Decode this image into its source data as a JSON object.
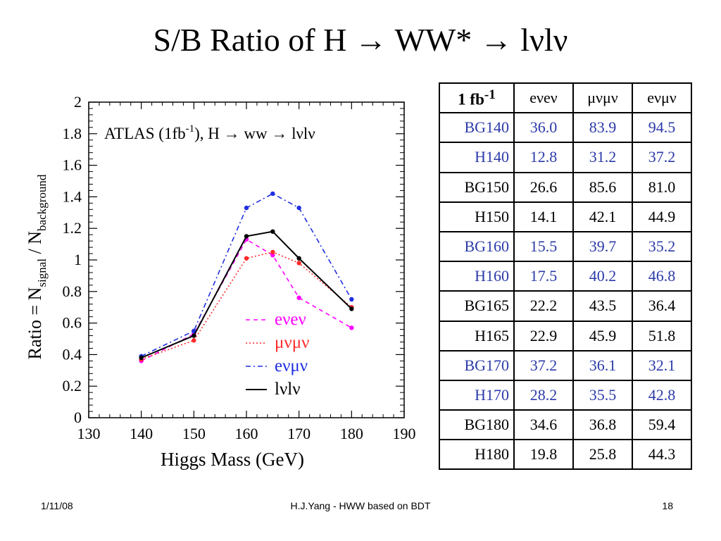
{
  "slide": {
    "title": "S/B Ratio of H → WW* → lνlν"
  },
  "footer": {
    "date": "1/11/08",
    "center": "H.J.Yang - HWW based on BDT",
    "page": "18"
  },
  "table": {
    "corner_text": "1 fb",
    "corner_sup": "-1",
    "headers": [
      "eνeν",
      "μνμν",
      "eνμν"
    ],
    "rows": [
      {
        "label": "BG140",
        "values": [
          "36.0",
          "83.9",
          "94.5"
        ],
        "blue": true
      },
      {
        "label": "H140",
        "values": [
          "12.8",
          "31.2",
          "37.2"
        ],
        "blue": true
      },
      {
        "label": "BG150",
        "values": [
          "26.6",
          "85.6",
          "81.0"
        ],
        "blue": false
      },
      {
        "label": "H150",
        "values": [
          "14.1",
          "42.1",
          "44.9"
        ],
        "blue": false
      },
      {
        "label": "BG160",
        "values": [
          "15.5",
          "39.7",
          "35.2"
        ],
        "blue": true
      },
      {
        "label": "H160",
        "values": [
          "17.5",
          "40.2",
          "46.8"
        ],
        "blue": true
      },
      {
        "label": "BG165",
        "values": [
          "22.2",
          "43.5",
          "36.4"
        ],
        "blue": false
      },
      {
        "label": "H165",
        "values": [
          "22.9",
          "45.9",
          "51.8"
        ],
        "blue": false
      },
      {
        "label": "BG170",
        "values": [
          "37.2",
          "36.1",
          "32.1"
        ],
        "blue": true
      },
      {
        "label": "H170",
        "values": [
          "28.2",
          "35.5",
          "42.8"
        ],
        "blue": true
      },
      {
        "label": "BG180",
        "values": [
          "34.6",
          "36.8",
          "59.4"
        ],
        "blue": false
      },
      {
        "label": "H180",
        "values": [
          "19.8",
          "25.8",
          "44.3"
        ],
        "blue": false
      }
    ]
  },
  "chart_data": {
    "type": "line",
    "title": "ATLAS (1fb-1), H → ww → lνlν",
    "title_parts": {
      "prefix": "ATLAS (1fb",
      "sup": "-1",
      "suffix": "), H → ww → lνlν"
    },
    "xlabel": "Higgs Mass (GeV)",
    "ylabel_parts": {
      "a": "Ratio = N",
      "sub1": "signal",
      "b": " / N",
      "sub2": "background"
    },
    "xlim": [
      130,
      190
    ],
    "ylim": [
      0,
      2
    ],
    "x_ticks": [
      "130",
      "140",
      "150",
      "160",
      "170",
      "180",
      "190"
    ],
    "y_ticks": [
      "0",
      "0.2",
      "0.4",
      "0.6",
      "0.8",
      "1",
      "1.2",
      "1.4",
      "1.6",
      "1.8",
      "2"
    ],
    "grid": false,
    "legend_position": "bottom-right",
    "series": [
      {
        "name": "eνeν",
        "color": "#ff00ff",
        "dash": "dash",
        "points": [
          [
            140,
            0.36
          ],
          [
            150,
            0.53
          ],
          [
            160,
            1.13
          ],
          [
            165,
            1.03
          ],
          [
            170,
            0.76
          ],
          [
            180,
            0.57
          ]
        ]
      },
      {
        "name": "μνμν",
        "color": "#ff2a2a",
        "dash": "dot",
        "points": [
          [
            140,
            0.37
          ],
          [
            150,
            0.49
          ],
          [
            160,
            1.01
          ],
          [
            165,
            1.05
          ],
          [
            170,
            0.98
          ],
          [
            180,
            0.7
          ]
        ]
      },
      {
        "name": "eνμν",
        "color": "#1f2ee0",
        "dash": "dashdot",
        "points": [
          [
            140,
            0.39
          ],
          [
            150,
            0.55
          ],
          [
            160,
            1.33
          ],
          [
            165,
            1.42
          ],
          [
            170,
            1.33
          ],
          [
            180,
            0.75
          ]
        ]
      },
      {
        "name": "lνlν",
        "color": "#000000",
        "dash": "solid",
        "points": [
          [
            140,
            0.38
          ],
          [
            150,
            0.52
          ],
          [
            160,
            1.15
          ],
          [
            165,
            1.18
          ],
          [
            170,
            1.01
          ],
          [
            180,
            0.69
          ]
        ]
      }
    ]
  }
}
